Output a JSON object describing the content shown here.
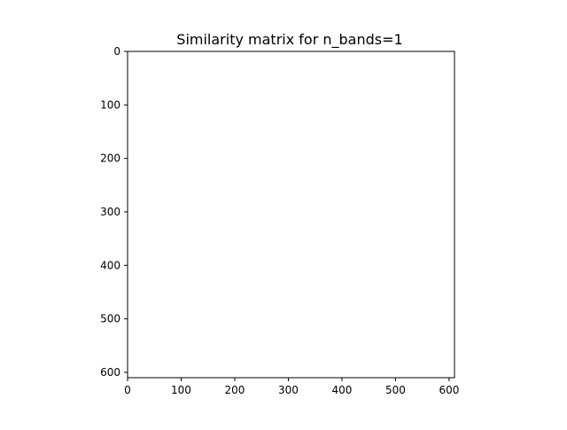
{
  "chart_data": {
    "type": "heatmap",
    "title": "Similarity matrix for n_bands=1",
    "xlabel": "",
    "ylabel": "",
    "xlim": [
      0,
      610
    ],
    "ylim": [
      610,
      0
    ],
    "x_ticks": [
      0,
      100,
      200,
      300,
      400,
      500,
      600
    ],
    "y_ticks": [
      0,
      100,
      200,
      300,
      400,
      500,
      600
    ],
    "x_tick_labels": [
      "0",
      "100",
      "200",
      "300",
      "400",
      "500",
      "600"
    ],
    "y_tick_labels": [
      "0",
      "100",
      "200",
      "300",
      "400",
      "500",
      "600"
    ],
    "matrix_fill_color": "#ffffff",
    "grid": false,
    "legend": "none"
  }
}
